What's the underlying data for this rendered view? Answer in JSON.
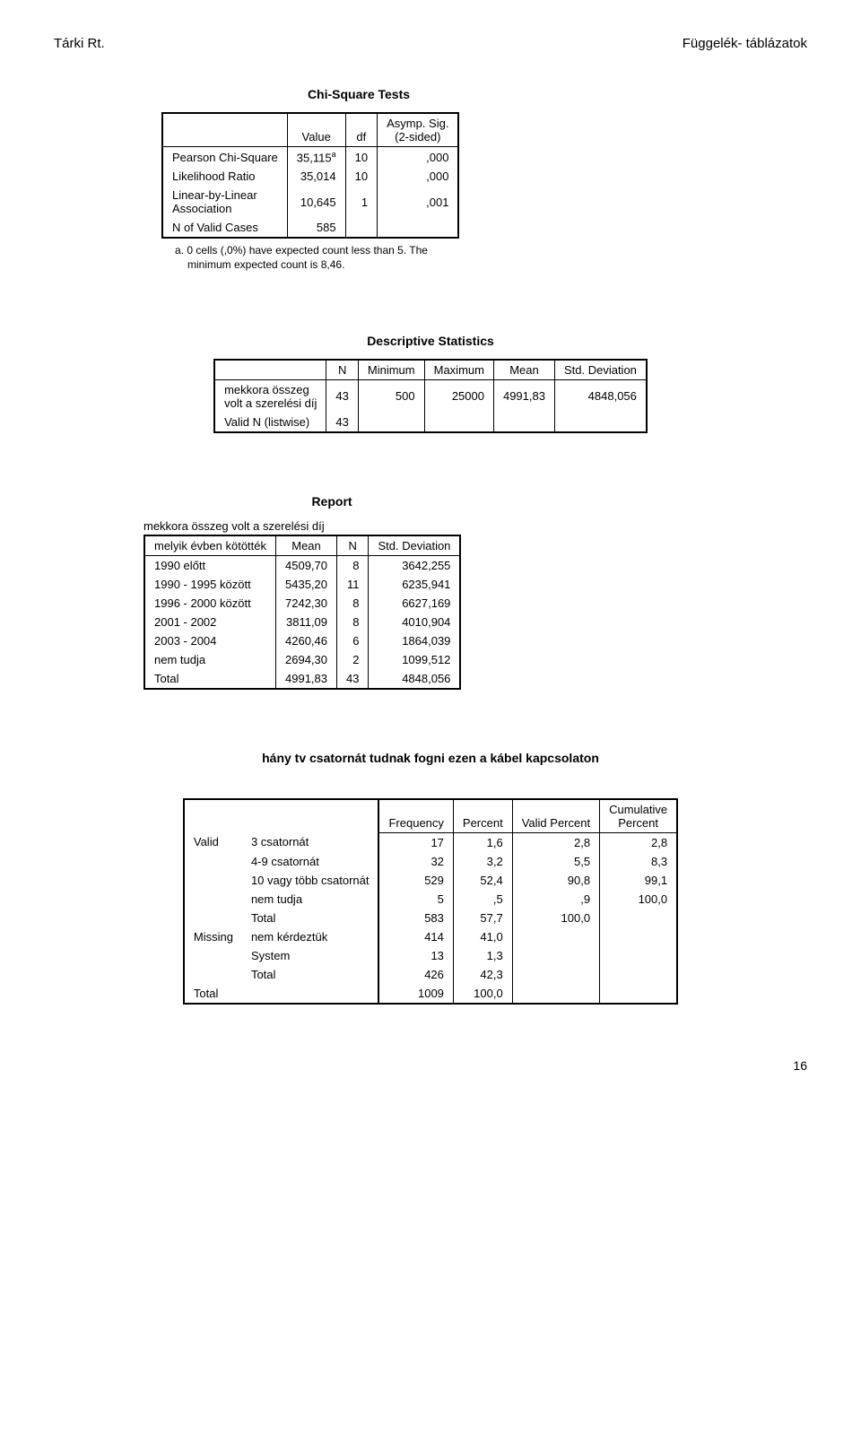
{
  "header": {
    "left": "Tárki Rt.",
    "right": "Függelék- táblázatok"
  },
  "t1": {
    "title": "Chi-Square Tests",
    "cols": {
      "c1": "Value",
      "c2": "df",
      "c3_a": "Asymp. Sig.",
      "c3_b": "(2-sided)"
    },
    "r1": {
      "label": "Pearson Chi-Square",
      "v": "35,115",
      "sup": "a",
      "df": "10",
      "sig": ",000"
    },
    "r2": {
      "label": "Likelihood Ratio",
      "v": "35,014",
      "df": "10",
      "sig": ",000"
    },
    "r3": {
      "label_a": "Linear-by-Linear",
      "label_b": "Association",
      "v": "10,645",
      "df": "1",
      "sig": ",001"
    },
    "r4": {
      "label": "N of Valid Cases",
      "v": "585"
    },
    "note_a": "a.",
    "note_txt1": "0 cells (,0%) have expected count less than 5. The",
    "note_txt2": "minimum expected count is 8,46."
  },
  "t2": {
    "title": "Descriptive Statistics",
    "cols": {
      "n": "N",
      "min": "Minimum",
      "max": "Maximum",
      "mean": "Mean",
      "std": "Std. Deviation"
    },
    "r1": {
      "label_a": "mekkora összeg",
      "label_b": "volt a szerelési díj",
      "n": "43",
      "min": "500",
      "max": "25000",
      "mean": "4991,83",
      "std": "4848,056"
    },
    "r2": {
      "label": "Valid N (listwise)",
      "n": "43"
    }
  },
  "t3": {
    "title": "Report",
    "subtitle": "mekkora összeg volt a szerelési díj",
    "cols": {
      "c0": "melyik évben kötötték",
      "c1": "Mean",
      "c2": "N",
      "c3": "Std. Deviation"
    },
    "rows": [
      {
        "l": "1990 előtt",
        "m": "4509,70",
        "n": "8",
        "s": "3642,255"
      },
      {
        "l": "1990 - 1995 között",
        "m": "5435,20",
        "n": "11",
        "s": "6235,941"
      },
      {
        "l": "1996 - 2000 között",
        "m": "7242,30",
        "n": "8",
        "s": "6627,169"
      },
      {
        "l": "2001 - 2002",
        "m": "3811,09",
        "n": "8",
        "s": "4010,904"
      },
      {
        "l": "2003 - 2004",
        "m": "4260,46",
        "n": "6",
        "s": "1864,039"
      },
      {
        "l": "nem tudja",
        "m": "2694,30",
        "n": "2",
        "s": "1099,512"
      },
      {
        "l": "Total",
        "m": "4991,83",
        "n": "43",
        "s": "4848,056"
      }
    ]
  },
  "t4": {
    "title": "hány tv csatornát tudnak fogni ezen a kábel kapcsolaton",
    "cols": {
      "freq": "Frequency",
      "pct": "Percent",
      "vpct": "Valid Percent",
      "cum_a": "Cumulative",
      "cum_b": "Percent"
    },
    "grp_valid": "Valid",
    "grp_missing": "Missing",
    "grp_total": "Total",
    "valid_rows": [
      {
        "l": "3 csatornát",
        "f": "17",
        "p": "1,6",
        "vp": "2,8",
        "cp": "2,8"
      },
      {
        "l": "4-9 csatornát",
        "f": "32",
        "p": "3,2",
        "vp": "5,5",
        "cp": "8,3"
      },
      {
        "l": "10 vagy több csatornát",
        "f": "529",
        "p": "52,4",
        "vp": "90,8",
        "cp": "99,1"
      },
      {
        "l": "nem tudja",
        "f": "5",
        "p": ",5",
        "vp": ",9",
        "cp": "100,0"
      },
      {
        "l": "Total",
        "f": "583",
        "p": "57,7",
        "vp": "100,0",
        "cp": ""
      }
    ],
    "missing_rows": [
      {
        "l": "nem kérdeztük",
        "f": "414",
        "p": "41,0"
      },
      {
        "l": "System",
        "f": "13",
        "p": "1,3"
      },
      {
        "l": "Total",
        "f": "426",
        "p": "42,3"
      }
    ],
    "total_row": {
      "f": "1009",
      "p": "100,0"
    }
  },
  "page_num": "16"
}
